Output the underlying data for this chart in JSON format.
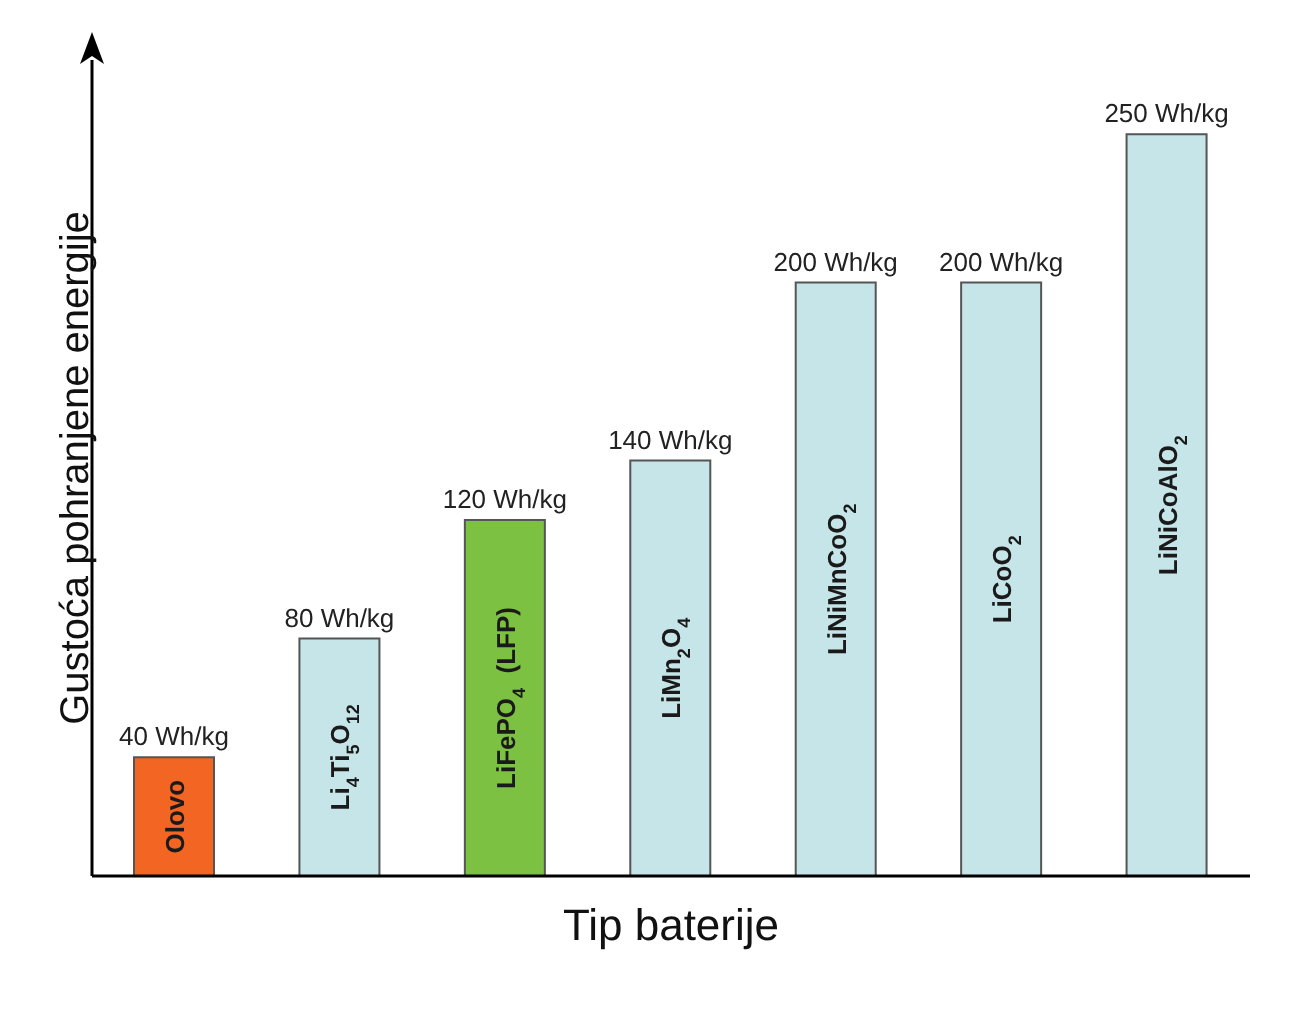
{
  "chart_data": {
    "type": "bar",
    "xlabel": "Tip baterije",
    "ylabel": "Gustoća pohranjene energije",
    "categories": [
      "Olovo",
      "Li$_{4}$Ti$_{5}$O$_{12}$",
      "LiFePO$_{4}$  (LFP)",
      "LiMn$_{2}$O$_{4}$",
      "LiNiMnCoO$_{2}$",
      "LiCoO$_{2}$",
      "LiNiCoAlO$_{2}$"
    ],
    "values": [
      40,
      80,
      120,
      140,
      200,
      200,
      250
    ],
    "colors": [
      "#f26522",
      "#c6e5e8",
      "#7dc142",
      "#c6e5e8",
      "#c6e5e8",
      "#c6e5e8",
      "#c6e5e8"
    ],
    "value_labels": [
      "40 Wh/kg",
      "80 Wh/kg",
      "120 Wh/kg",
      "140 Wh/kg",
      "200 Wh/kg",
      "200 Wh/kg",
      "250 Wh/kg"
    ],
    "ylim": [
      0,
      275
    ]
  }
}
